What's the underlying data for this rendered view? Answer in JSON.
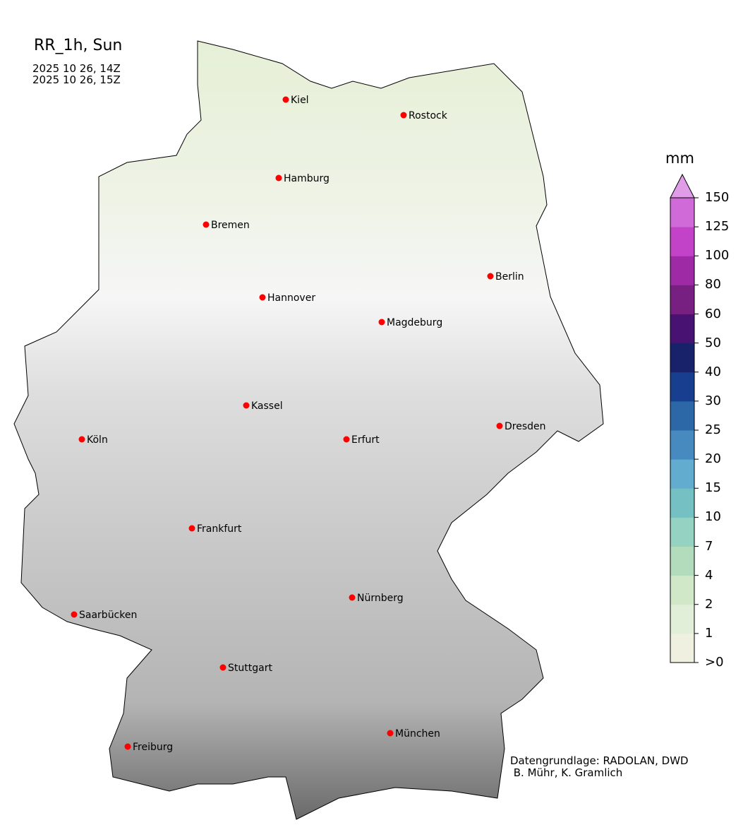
{
  "title": "RR_1h, Sun",
  "time_start": "2025 10 26, 14Z",
  "time_end": "2025 10 26, 15Z",
  "colorbar": {
    "unit": "mm",
    "ticks": [
      ">0",
      "1",
      "2",
      "4",
      "7",
      "10",
      "15",
      "20",
      "25",
      "30",
      "40",
      "50",
      "60",
      "80",
      "100",
      "125",
      "150"
    ],
    "colors": [
      "#f0f0e0",
      "#e2efd8",
      "#d0e8c8",
      "#b2dcbc",
      "#96d2c2",
      "#74c0c2",
      "#62acd0",
      "#468ac0",
      "#2c68a8",
      "#183e90",
      "#17226a",
      "#481272",
      "#772082",
      "#9e2aa6",
      "#c242c8",
      "#d06ad8"
    ],
    "extend_color": "#e09ce6"
  },
  "cities": [
    "Kiel",
    "Rostock",
    "Hamburg",
    "Bremen",
    "Berlin",
    "Hannover",
    "Magdeburg",
    "Kassel",
    "Dresden",
    "Köln",
    "Erfurt",
    "Frankfurt",
    "Nürnberg",
    "Saarbücken",
    "Stuttgart",
    "Freiburg",
    "München"
  ],
  "credit_line1": "Datengrundlage: RADOLAN, DWD",
  "credit_line2": " B. Mühr, K. Gramlich"
}
